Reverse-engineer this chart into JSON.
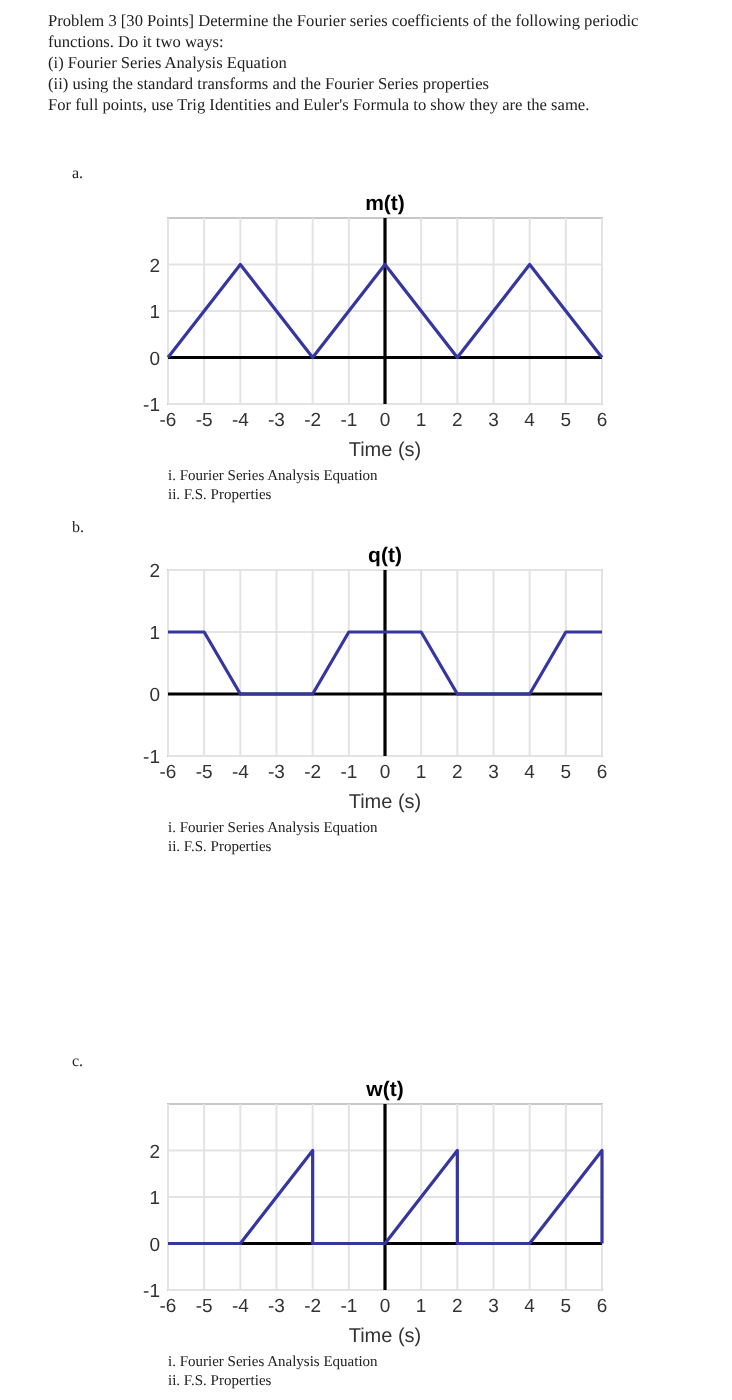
{
  "chart_data": [
    {
      "type": "line",
      "title": "m(t)",
      "xlabel": "Time (s)",
      "x": [
        -6,
        -4,
        -2,
        0,
        2,
        4,
        6
      ],
      "series": [
        {
          "color": "#000000",
          "x": [
            -6,
            6
          ],
          "values": [
            0,
            0
          ]
        },
        {
          "color": "#000000",
          "x": [
            0,
            0
          ],
          "values": [
            -1,
            3
          ]
        },
        {
          "color": "#3636a0",
          "values": [
            0,
            2,
            0,
            2,
            0,
            2,
            0
          ]
        }
      ],
      "xlim": [
        -6,
        6
      ],
      "ylim": [
        -1,
        3
      ],
      "xticks": [
        -6,
        -5,
        -4,
        -3,
        -2,
        -1,
        0,
        1,
        2,
        3,
        4,
        5,
        6
      ],
      "yticks": [
        -1,
        0,
        1,
        2
      ],
      "grid": true,
      "marker": "none",
      "line_style": "solid",
      "annotations": [
        "Problem 3 [30 Points] Determine the Fourier series coefficients of the following periodic",
        "functions. Do it two ways:",
        "(i)      Fourier Series Analysis Equation",
        "(ii)     using the standard transforms and the Fourier Series properties",
        "For full points, use Trig Identities and Euler's Formula to show they are the same.",
        "a.",
        "i.  Fourier Series Analysis Equation",
        "ii.  F.S. Properties"
      ]
    },
    {
      "type": "line",
      "title": "q(t)",
      "xlabel": "Time (s)",
      "x": [
        -6,
        -5,
        -4,
        -2,
        -1,
        1,
        2,
        4,
        5,
        6
      ],
      "series": [
        {
          "color": "#000000",
          "x": [
            -6,
            6
          ],
          "values": [
            0,
            0
          ]
        },
        {
          "color": "#000000",
          "x": [
            0,
            0
          ],
          "values": [
            -1,
            2
          ]
        },
        {
          "color": "#3636a0",
          "values": [
            1,
            1,
            0,
            0,
            1,
            1,
            0,
            0,
            1,
            1
          ]
        }
      ],
      "xlim": [
        -6,
        6
      ],
      "ylim": [
        -1,
        2
      ],
      "xticks": [
        -6,
        -5,
        -4,
        -3,
        -2,
        -1,
        0,
        1,
        2,
        3,
        4,
        5,
        6
      ],
      "yticks": [
        -1,
        0,
        1,
        2
      ],
      "grid": true,
      "marker": "none",
      "line_style": "solid",
      "annotations": [
        "b.",
        "i.  Fourier Series Analysis Equation",
        "ii.  F.S. Properties"
      ]
    },
    {
      "type": "line",
      "title": "w(t)",
      "xlabel": "Time (s)",
      "x": [
        -6,
        -4,
        -2,
        -2,
        0,
        2,
        2,
        4,
        6,
        6
      ],
      "series": [
        {
          "color": "#000000",
          "x": [
            -6,
            6
          ],
          "values": [
            0,
            0
          ]
        },
        {
          "color": "#000000",
          "x": [
            0,
            0
          ],
          "values": [
            -1,
            3
          ]
        },
        {
          "color": "#3636a0",
          "values": [
            0,
            0,
            2,
            0,
            0,
            2,
            0,
            0,
            2,
            0
          ]
        }
      ],
      "xlim": [
        -6,
        6
      ],
      "ylim": [
        -1,
        3
      ],
      "xticks": [
        -6,
        -5,
        -4,
        -3,
        -2,
        -1,
        0,
        1,
        2,
        3,
        4,
        5,
        6
      ],
      "yticks": [
        -1,
        0,
        1,
        2
      ],
      "grid": true,
      "marker": "none",
      "line_style": "solid",
      "annotations": [
        "c.",
        "i.  Fourier Series Analysis Equation",
        "ii.  F.S. Properties"
      ]
    }
  ]
}
